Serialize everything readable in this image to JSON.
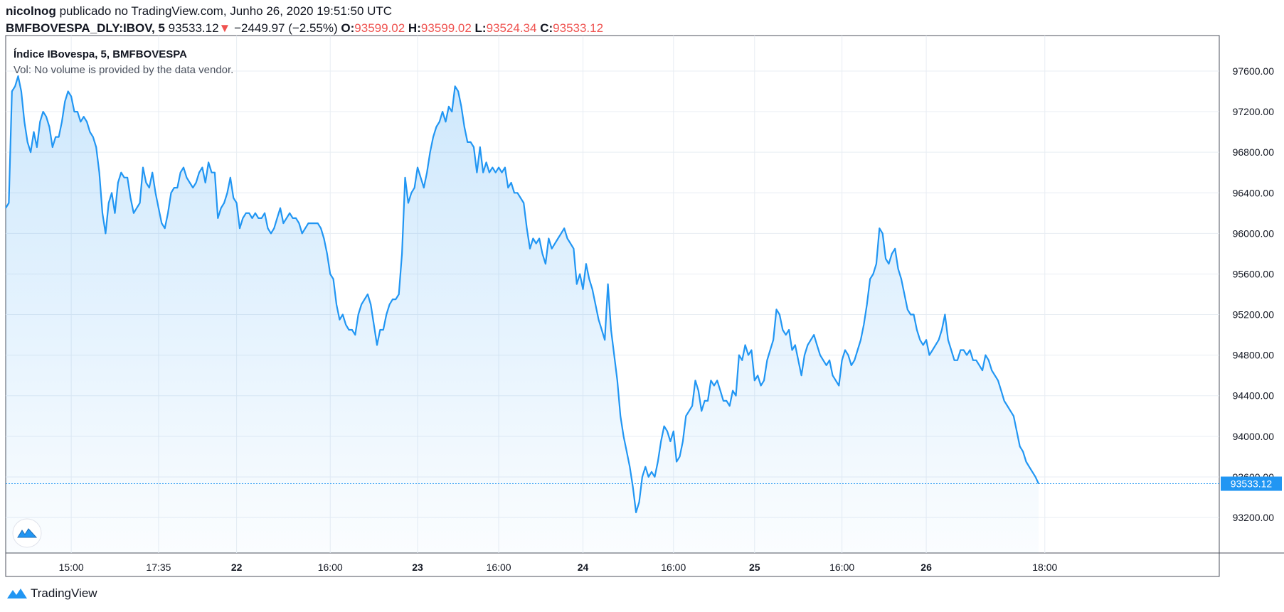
{
  "header": {
    "author": "nicolnog",
    "published_text": "publicado no TradingView.com, Junho 26, 2020 19:51:50 UTC",
    "symbol": "BMFBOVESPA_DLY:IBOV, 5",
    "last": "93533.12",
    "change_arrow": "▼",
    "change": "−2449.97 (−2.55%)",
    "o_label": "O:",
    "o_value": "93599.02",
    "h_label": "H:",
    "h_value": "93599.02",
    "l_label": "L:",
    "l_value": "93524.34",
    "c_label": "C:",
    "c_value": "93533.12"
  },
  "legend": {
    "title": "Índice IBovespa, 5, BMFBOVESPA",
    "vol": "Vol: No volume is provided by the data vendor."
  },
  "footer": {
    "brand": "TradingView"
  },
  "colors": {
    "line": "#2196f3",
    "grid": "#e8edf3",
    "axis": "#4c525e",
    "price_tag": "#2196f3",
    "down": "#ef5350"
  },
  "chart_data": {
    "type": "area",
    "ylim": [
      92850,
      97950
    ],
    "y_ticks": [
      "93200.00",
      "93600.00",
      "94000.00",
      "94400.00",
      "94800.00",
      "95200.00",
      "95600.00",
      "96000.00",
      "96400.00",
      "96800.00",
      "97200.00",
      "97600.00"
    ],
    "x_ticks": [
      "15:00",
      "17:35",
      "22",
      "16:00",
      "23",
      "16:00",
      "24",
      "16:00",
      "25",
      "16:00",
      "26",
      "18:00"
    ],
    "last_price_label": "93533.12",
    "series": [
      {
        "values": [
          96250,
          96300,
          97400,
          97450,
          97550,
          97400,
          97100,
          96900,
          96800,
          97000,
          96850,
          97100,
          97200,
          97150,
          97050,
          96850,
          96950,
          96950,
          97100,
          97300,
          97400,
          97350,
          97200,
          97200,
          97100,
          97150,
          97100,
          97000,
          96950,
          96850,
          96600,
          96200,
          96000,
          96300,
          96400,
          96200,
          96500,
          96600,
          96550,
          96550,
          96350,
          96200,
          96250,
          96300,
          96650,
          96500,
          96450,
          96600,
          96400,
          96250,
          96100,
          96050,
          96200,
          96400,
          96450,
          96450,
          96600,
          96650,
          96550,
          96500,
          96450,
          96500,
          96600,
          96650,
          96500,
          96700,
          96600,
          96600,
          96150,
          96250,
          96300,
          96400,
          96550,
          96350,
          96300,
          96050,
          96150,
          96200,
          96200,
          96150,
          96200,
          96150,
          96150,
          96200,
          96050,
          96000,
          96050,
          96150,
          96250,
          96100,
          96150,
          96200,
          96150,
          96150,
          96100,
          96000,
          96050,
          96100,
          96100,
          96100,
          96100,
          96050,
          95950,
          95800,
          95600,
          95550,
          95300,
          95150,
          95200,
          95100,
          95050,
          95050,
          95000,
          95200,
          95300,
          95350,
          95400,
          95300,
          95100,
          94900,
          95050,
          95050,
          95200,
          95300,
          95350,
          95350,
          95400,
          95800,
          96550,
          96300,
          96400,
          96450,
          96650,
          96550,
          96450,
          96600,
          96800,
          96950,
          97050,
          97100,
          97200,
          97100,
          97250,
          97200,
          97450,
          97400,
          97250,
          97050,
          96900,
          96900,
          96850,
          96600,
          96850,
          96600,
          96700,
          96600,
          96650,
          96600,
          96650,
          96600,
          96650,
          96450,
          96500,
          96400,
          96400,
          96350,
          96300,
          96050,
          95850,
          95950,
          95900,
          95950,
          95800,
          95700,
          95950,
          95850,
          95900,
          95950,
          96000,
          96050,
          95950,
          95900,
          95850,
          95500,
          95600,
          95450,
          95700,
          95550,
          95450,
          95300,
          95150,
          95050,
          94950,
          95500,
          95050,
          94800,
          94550,
          94200,
          94000,
          93850,
          93700,
          93500,
          93250,
          93350,
          93600,
          93700,
          93600,
          93650,
          93600,
          93750,
          93950,
          94100,
          94050,
          93950,
          94050,
          93750,
          93800,
          93950,
          94200,
          94250,
          94300,
          94550,
          94450,
          94250,
          94350,
          94350,
          94550,
          94500,
          94550,
          94450,
          94350,
          94350,
          94300,
          94450,
          94400,
          94800,
          94750,
          94900,
          94800,
          94850,
          94550,
          94600,
          94500,
          94550,
          94750,
          94850,
          94950,
          95250,
          95200,
          95050,
          95000,
          95050,
          94850,
          94900,
          94750,
          94600,
          94800,
          94900,
          94950,
          95000,
          94900,
          94800,
          94750,
          94700,
          94750,
          94600,
          94550,
          94500,
          94750,
          94850,
          94800,
          94700,
          94750,
          94850,
          94950,
          95100,
          95300,
          95550,
          95600,
          95700,
          96050,
          96000,
          95750,
          95700,
          95800,
          95850,
          95650,
          95550,
          95400,
          95250,
          95200,
          95200,
          95050,
          94950,
          94900,
          94950,
          94800,
          94850,
          94900,
          94950,
          95050,
          95200,
          94950,
          94850,
          94750,
          94750,
          94850,
          94850,
          94800,
          94850,
          94750,
          94750,
          94700,
          94650,
          94800,
          94750,
          94650,
          94600,
          94550,
          94450,
          94350,
          94300,
          94250,
          94200,
          94050,
          93900,
          93850,
          93750,
          93700,
          93650,
          93600,
          93533
        ]
      }
    ]
  }
}
